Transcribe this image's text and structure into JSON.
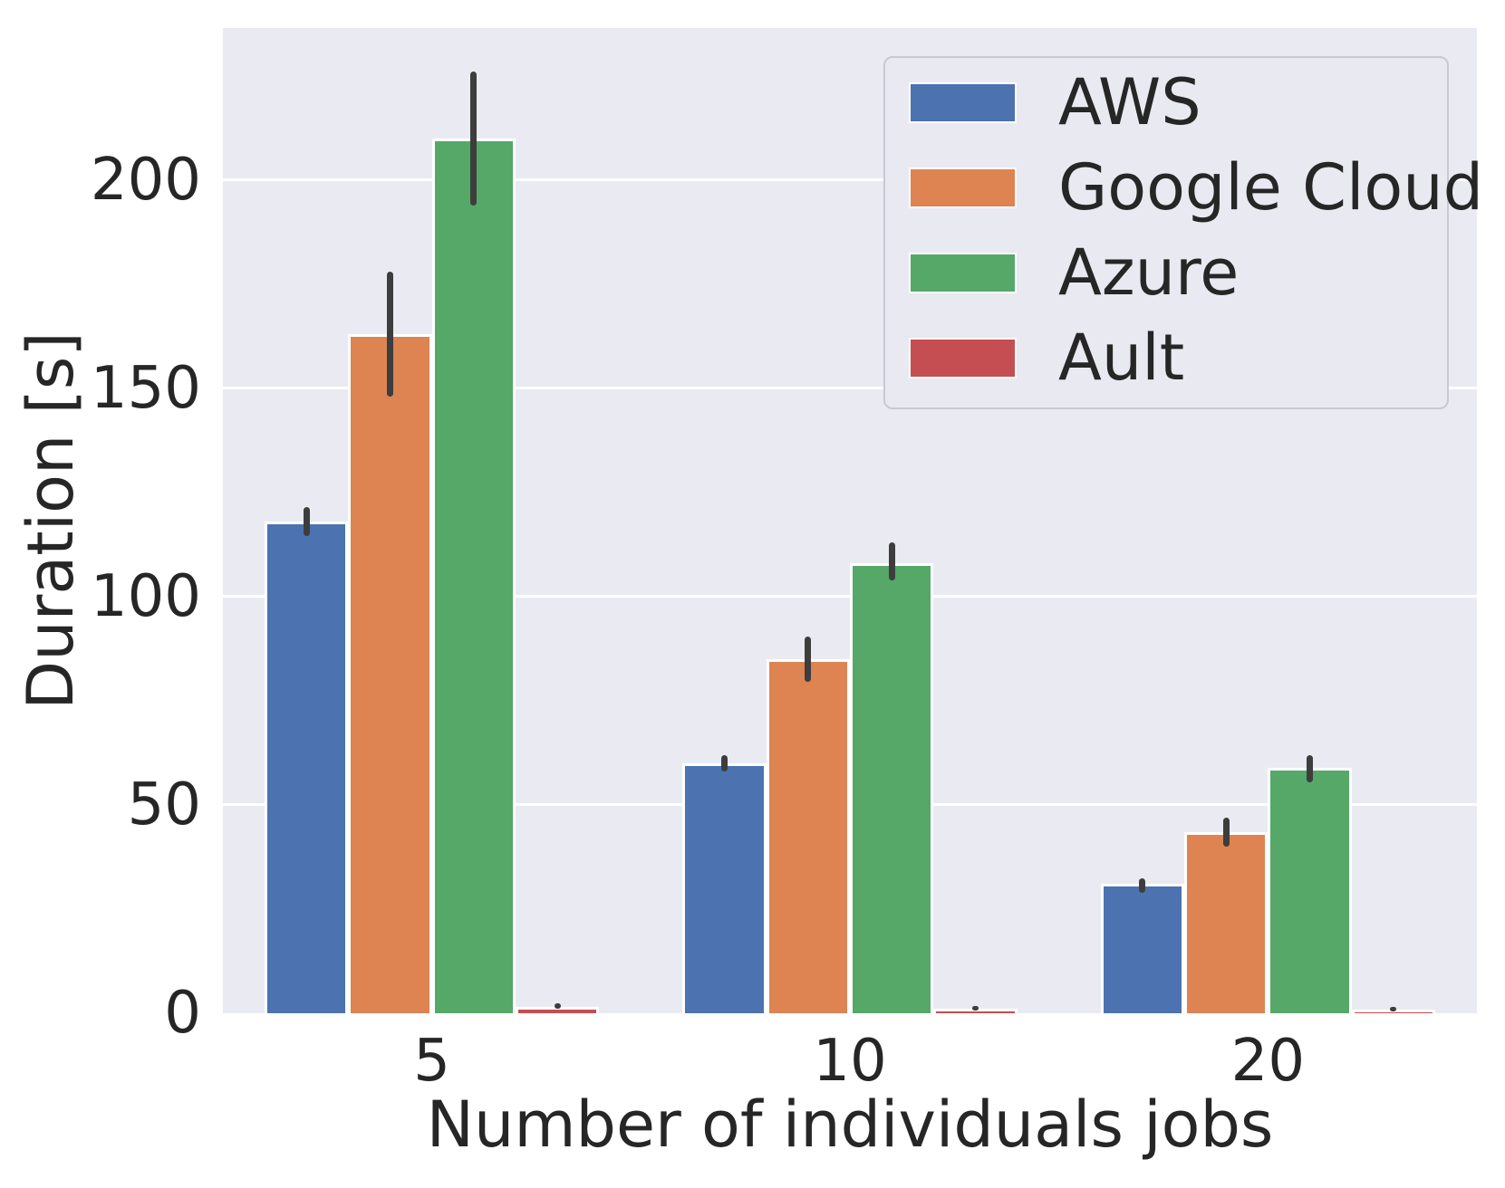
{
  "chart_data": {
    "type": "bar",
    "title": "",
    "xlabel": "Number of individuals jobs",
    "ylabel": "Duration [s]",
    "categories": [
      "5",
      "10",
      "20"
    ],
    "y_ticks": [
      0,
      50,
      100,
      150,
      200
    ],
    "ylim": [
      0,
      236.5
    ],
    "grid": "horizontal-white-lines",
    "legend_position": "upper-right",
    "plot_background": "#eaeaf2",
    "figure_background": "#ffffff",
    "error_bar_color": "#3d3d3d",
    "bar_edge_color": "#ffffff",
    "group_width_fraction": 0.8,
    "series": [
      {
        "name": "AWS",
        "color": "#4c72b0",
        "values": [
          118,
          60,
          31
        ],
        "error_low": [
          114.5,
          58,
          29
        ],
        "error_high": [
          121.5,
          62,
          32.5
        ]
      },
      {
        "name": "Google Cloud",
        "color": "#dd8452",
        "values": [
          163,
          85,
          43.5
        ],
        "error_low": [
          148,
          79.5,
          40
        ],
        "error_high": [
          178,
          90.5,
          47
        ]
      },
      {
        "name": "Azure",
        "color": "#55a868",
        "values": [
          210,
          108,
          59
        ],
        "error_low": [
          194,
          104,
          55.5
        ],
        "error_high": [
          226,
          113,
          62
        ]
      },
      {
        "name": "Ault",
        "color": "#c44e52",
        "values": [
          1.6,
          1.0,
          0.9
        ],
        "error_low": [
          1.0,
          0.6,
          0.5
        ],
        "error_high": [
          2.3,
          1.5,
          1.3
        ]
      }
    ]
  }
}
